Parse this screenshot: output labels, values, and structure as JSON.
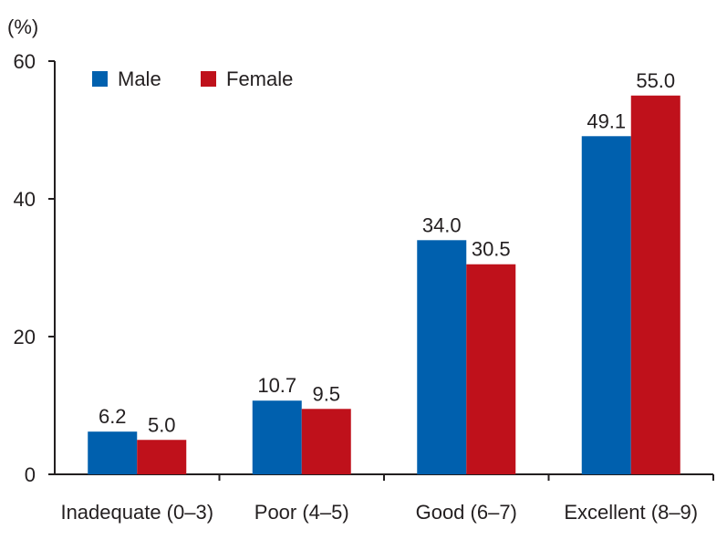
{
  "chart_data": {
    "type": "bar",
    "title": "",
    "ylabel": "(%)",
    "xlabel": "",
    "ylim": [
      0,
      60
    ],
    "yticks": [
      "0",
      "20",
      "40",
      "60"
    ],
    "categories": [
      "Inadequate (0–3)",
      "Poor (4–5)",
      "Good (6–7)",
      "Excellent (8–9)"
    ],
    "series": [
      {
        "name": "Male",
        "color": "#0060ae",
        "values": [
          6.2,
          10.7,
          34.0,
          49.1
        ],
        "labels": [
          "6.2",
          "10.7",
          "34.0",
          "49.1"
        ]
      },
      {
        "name": "Female",
        "color": "#bf111b",
        "values": [
          5.0,
          9.5,
          30.5,
          55.0
        ],
        "labels": [
          "5.0",
          "9.5",
          "30.5",
          "55.0"
        ]
      }
    ],
    "legend_position": "top-left",
    "grid": false
  }
}
